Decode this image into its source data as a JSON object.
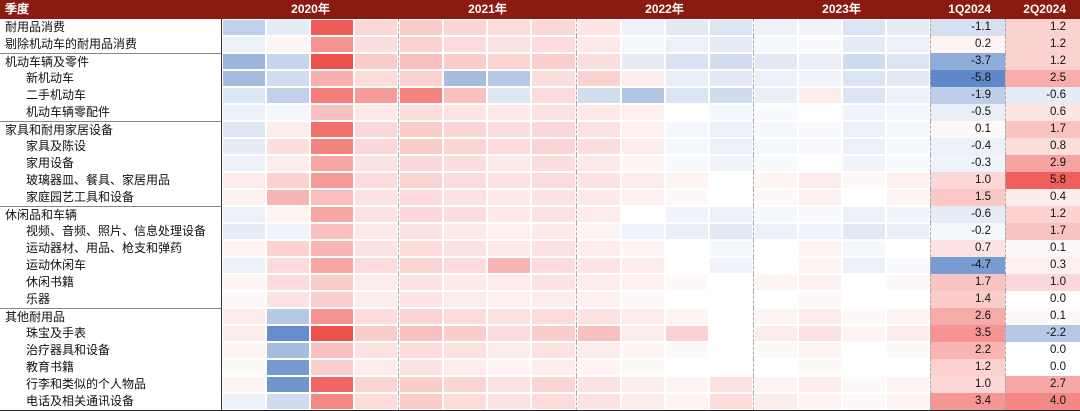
{
  "header": {
    "quarter_label": "季度",
    "years": [
      "2020年",
      "2021年",
      "2022年",
      "2023年"
    ],
    "q1_label": "1Q2024",
    "q2_label": "2Q2024"
  },
  "colors": {
    "header_bg": "#8b1a10",
    "header_text": "#ffffff",
    "positive_max": "#ee504b",
    "negative_max": "#507dc3",
    "year_divider": "#aaaaaa"
  },
  "chart_data": {
    "type": "heatmap",
    "title": "",
    "column_groups": [
      "2020年",
      "2021年",
      "2022年",
      "2023年"
    ],
    "quarter_columns": [
      "2020Q1",
      "2020Q2",
      "2020Q3",
      "2020Q4",
      "2021Q1",
      "2021Q2",
      "2021Q3",
      "2021Q4",
      "2022Q1",
      "2022Q2",
      "2022Q3",
      "2022Q4",
      "2023Q1",
      "2023Q2",
      "2023Q3",
      "2023Q4"
    ],
    "value_columns": [
      "1Q2024",
      "2Q2024"
    ],
    "scale_max": 6.5,
    "legend": "blue = negative, red = positive",
    "rows": [
      {
        "label": "耐用品消费",
        "indent": 0,
        "section": false,
        "quarters": [
          -1.8,
          -0.6,
          6.0,
          1.0,
          1.4,
          1.1,
          0.9,
          1.0,
          0.6,
          -0.4,
          -0.7,
          -0.9,
          -0.4,
          -0.3,
          -0.9,
          -0.6
        ],
        "q1_2024": -1.1,
        "q2_2024": 1.2
      },
      {
        "label": "剔除机动车的耐用品消费",
        "indent": 0,
        "section": false,
        "quarters": [
          -0.4,
          0.2,
          3.5,
          0.8,
          1.2,
          0.9,
          0.7,
          0.9,
          0.5,
          -0.2,
          -0.4,
          -0.6,
          -0.2,
          -0.1,
          -0.6,
          -0.4
        ],
        "q1_2024": 0.2,
        "q2_2024": 1.2
      },
      {
        "label": "机动车辆及零件",
        "indent": 0,
        "section": true,
        "quarters": [
          -3.2,
          -1.6,
          6.5,
          1.4,
          1.8,
          1.4,
          1.1,
          1.3,
          0.8,
          -0.6,
          -1.0,
          -1.2,
          -0.7,
          -0.5,
          -1.3,
          -0.9
        ],
        "q1_2024": -3.7,
        "q2_2024": 1.2
      },
      {
        "label": "新机动车",
        "indent": 1,
        "section": false,
        "quarters": [
          -2.8,
          -1.2,
          2.4,
          0.9,
          1.2,
          -2.8,
          -2.2,
          0.8,
          1.2,
          0.4,
          -0.5,
          -0.7,
          -0.4,
          -0.3,
          -0.9,
          -0.7
        ],
        "q1_2024": -5.8,
        "q2_2024": 2.5
      },
      {
        "label": "二手机动车",
        "indent": 1,
        "section": false,
        "quarters": [
          -0.8,
          -1.8,
          4.5,
          3.2,
          4.2,
          1.8,
          -0.8,
          0.9,
          -1.2,
          -2.4,
          -0.9,
          -1.3,
          -0.5,
          0.4,
          -0.9,
          -0.4
        ],
        "q1_2024": -1.9,
        "q2_2024": -0.6
      },
      {
        "label": "机动车辆零配件",
        "indent": 1,
        "section": false,
        "quarters": [
          -0.4,
          -0.2,
          1.8,
          0.5,
          0.8,
          0.6,
          0.5,
          0.7,
          0.5,
          0.3,
          0.0,
          -0.2,
          -0.1,
          0.0,
          -0.3,
          -0.2
        ],
        "q1_2024": -0.5,
        "q2_2024": 0.6
      },
      {
        "label": "家具和耐用家居设备",
        "indent": 0,
        "section": true,
        "quarters": [
          -0.8,
          0.4,
          5.0,
          1.0,
          1.4,
          1.1,
          0.8,
          1.0,
          0.7,
          0.3,
          -0.2,
          -0.4,
          -0.2,
          -0.1,
          -0.4,
          -0.2
        ],
        "q1_2024": 0.1,
        "q2_2024": 1.7
      },
      {
        "label": "家具及陈设",
        "indent": 1,
        "section": false,
        "quarters": [
          -0.6,
          0.8,
          4.2,
          1.0,
          1.4,
          1.1,
          0.9,
          1.1,
          0.8,
          0.4,
          -0.2,
          -0.4,
          -0.2,
          -0.1,
          -0.4,
          -0.2
        ],
        "q1_2024": -0.4,
        "q2_2024": 0.8
      },
      {
        "label": "家用设备",
        "indent": 1,
        "section": false,
        "quarters": [
          -0.4,
          0.4,
          2.8,
          0.7,
          1.0,
          0.8,
          0.5,
          0.8,
          0.5,
          0.2,
          -0.1,
          -0.3,
          -0.1,
          0.0,
          -0.3,
          -0.1
        ],
        "q1_2024": -0.3,
        "q2_2024": 2.9
      },
      {
        "label": "玻璃器皿、餐具、家居用品",
        "indent": 1,
        "section": false,
        "quarters": [
          0.4,
          1.2,
          3.2,
          0.9,
          1.1,
          0.9,
          0.7,
          0.9,
          0.7,
          0.4,
          0.2,
          0.0,
          0.2,
          0.4,
          0.1,
          0.3
        ],
        "q1_2024": 1.0,
        "q2_2024": 5.8
      },
      {
        "label": "家庭园艺工具和设备",
        "indent": 1,
        "section": false,
        "quarters": [
          0.3,
          2.2,
          1.8,
          0.7,
          0.9,
          0.7,
          0.5,
          0.7,
          0.5,
          0.3,
          0.1,
          0.0,
          0.1,
          0.3,
          0.0,
          0.2
        ],
        "q1_2024": 1.5,
        "q2_2024": 0.4
      },
      {
        "label": "休闲品和车辆",
        "indent": 0,
        "section": true,
        "quarters": [
          -0.4,
          0.2,
          2.8,
          0.7,
          1.0,
          0.8,
          0.5,
          0.7,
          0.4,
          0.0,
          -0.3,
          -0.4,
          -0.2,
          -0.1,
          -0.4,
          -0.3
        ],
        "q1_2024": -0.6,
        "q2_2024": 1.2
      },
      {
        "label": "视频、音频、照片、信息处理设备",
        "indent": 1,
        "section": false,
        "quarters": [
          -0.6,
          -0.3,
          1.8,
          0.5,
          0.7,
          0.5,
          0.3,
          0.5,
          0.2,
          -0.3,
          -0.5,
          -0.7,
          -0.4,
          -0.3,
          -0.7,
          -0.5
        ],
        "q1_2024": -0.2,
        "q2_2024": 1.7
      },
      {
        "label": "运动器材、用品、枪支和弹药",
        "indent": 1,
        "section": false,
        "quarters": [
          0.2,
          1.2,
          2.2,
          0.7,
          0.9,
          0.7,
          0.5,
          0.7,
          0.4,
          0.2,
          0.0,
          -0.2,
          0.0,
          0.2,
          -0.2,
          0.0
        ],
        "q1_2024": 0.7,
        "q2_2024": 0.1
      },
      {
        "label": "运动休闲车",
        "indent": 1,
        "section": false,
        "quarters": [
          -0.4,
          0.9,
          2.8,
          0.9,
          1.1,
          0.9,
          2.2,
          0.9,
          0.6,
          0.4,
          0.0,
          -0.3,
          0.0,
          0.2,
          -0.4,
          -0.1
        ],
        "q1_2024": -4.7,
        "q2_2024": 0.3
      },
      {
        "label": "休闲书籍",
        "indent": 1,
        "section": false,
        "quarters": [
          0.2,
          0.9,
          1.4,
          0.4,
          0.7,
          0.5,
          0.4,
          0.7,
          0.4,
          0.3,
          0.1,
          0.0,
          0.2,
          0.3,
          0.0,
          0.1
        ],
        "q1_2024": 1.7,
        "q2_2024": 1.0
      },
      {
        "label": "乐器",
        "indent": 1,
        "section": false,
        "quarters": [
          0.1,
          0.7,
          1.3,
          0.4,
          0.6,
          0.4,
          0.3,
          0.4,
          0.3,
          0.1,
          0.0,
          0.0,
          0.0,
          0.1,
          0.0,
          0.0
        ],
        "q1_2024": 1.4,
        "q2_2024": 0.0
      },
      {
        "label": "其他耐用品",
        "indent": 0,
        "section": true,
        "quarters": [
          0.4,
          -2.2,
          3.5,
          0.9,
          1.1,
          0.9,
          0.7,
          0.9,
          0.7,
          0.4,
          0.2,
          0.0,
          0.2,
          0.4,
          0.1,
          0.2
        ],
        "q1_2024": 2.6,
        "q2_2024": 0.1
      },
      {
        "label": "珠宝及手表",
        "indent": 1,
        "section": false,
        "quarters": [
          0.4,
          -5.5,
          6.5,
          1.4,
          1.8,
          1.4,
          0.9,
          1.4,
          1.8,
          0.4,
          1.2,
          0.0,
          0.4,
          0.7,
          0.2,
          0.4
        ],
        "q1_2024": 3.5,
        "q2_2024": -2.2
      },
      {
        "label": "治疗器具和设备",
        "indent": 1,
        "section": false,
        "quarters": [
          0.2,
          -2.8,
          1.8,
          0.7,
          0.9,
          0.7,
          0.4,
          0.7,
          0.4,
          0.2,
          0.1,
          0.0,
          0.1,
          0.2,
          0.0,
          0.1
        ],
        "q1_2024": 2.2,
        "q2_2024": 0.0
      },
      {
        "label": "教育书籍",
        "indent": 1,
        "section": false,
        "quarters": [
          0.1,
          -4.8,
          1.3,
          0.4,
          0.7,
          0.4,
          0.2,
          0.4,
          0.2,
          0.1,
          0.0,
          0.0,
          0.0,
          0.1,
          0.0,
          0.0
        ],
        "q1_2024": 1.2,
        "q2_2024": 0.0
      },
      {
        "label": "行李和类似的个人物品",
        "indent": 1,
        "section": false,
        "quarters": [
          0.2,
          -5.0,
          5.5,
          1.1,
          1.4,
          1.1,
          0.7,
          1.1,
          0.7,
          0.4,
          0.2,
          0.7,
          0.2,
          0.4,
          0.1,
          0.2
        ],
        "q1_2024": 1.0,
        "q2_2024": 2.7
      },
      {
        "label": "电话及相关通讯设备",
        "indent": 1,
        "section": false,
        "quarters": [
          -0.4,
          -1.3,
          4.0,
          0.9,
          1.4,
          0.9,
          0.7,
          0.9,
          0.7,
          0.4,
          0.2,
          0.9,
          0.4,
          0.2,
          0.1,
          0.2
        ],
        "q1_2024": 3.4,
        "q2_2024": 4.0
      }
    ]
  }
}
